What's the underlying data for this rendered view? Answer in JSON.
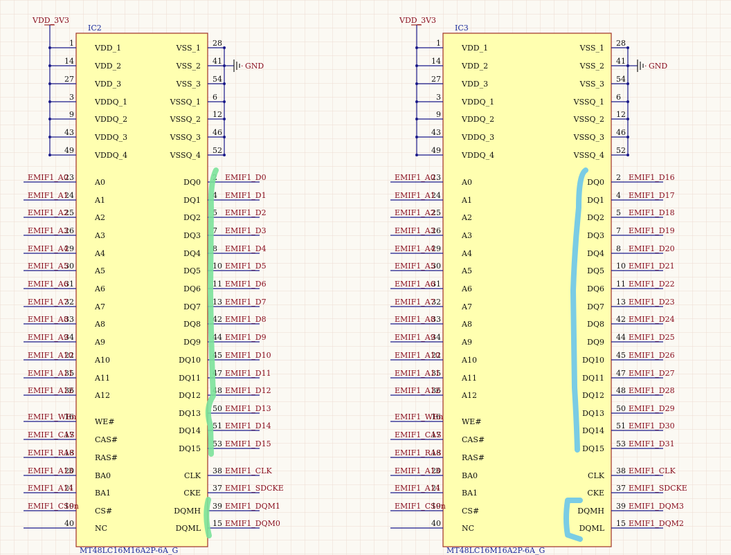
{
  "colors": {
    "body_fill": "#ffffb0",
    "body_stroke": "#a03028",
    "wire": "#1a1a8a",
    "net_text": "#8a1020",
    "grid": "#ecdcd2",
    "mark_ic2": "#7be29a",
    "mark_ic3": "#6cc6ea"
  },
  "ics": [
    {
      "designator": "IC2",
      "part": "MT48LC16M16A2P-6A_G",
      "power_label": "VDD_3V3",
      "gnd_label": "GND",
      "mark_color": "mark_ic2",
      "left_pins": [
        {
          "num": "1",
          "name": "VDD_1",
          "net": ""
        },
        {
          "num": "14",
          "name": "VDD_2",
          "net": ""
        },
        {
          "num": "27",
          "name": "VDD_3",
          "net": ""
        },
        {
          "num": "3",
          "name": "VDDQ_1",
          "net": ""
        },
        {
          "num": "9",
          "name": "VDDQ_2",
          "net": ""
        },
        {
          "num": "43",
          "name": "VDDQ_3",
          "net": ""
        },
        {
          "num": "49",
          "name": "VDDQ_4",
          "net": ""
        },
        {
          "num": "23",
          "name": "A0",
          "net": "EMIF1_A0"
        },
        {
          "num": "24",
          "name": "A1",
          "net": "EMIF1_A1"
        },
        {
          "num": "25",
          "name": "A2",
          "net": "EMIF1_A2"
        },
        {
          "num": "26",
          "name": "A3",
          "net": "EMIF1_A3"
        },
        {
          "num": "29",
          "name": "A4",
          "net": "EMIF1_A4"
        },
        {
          "num": "30",
          "name": "A5",
          "net": "EMIF1_A5"
        },
        {
          "num": "31",
          "name": "A6",
          "net": "EMIF1_A6"
        },
        {
          "num": "32",
          "name": "A7",
          "net": "EMIF1_A7"
        },
        {
          "num": "33",
          "name": "A8",
          "net": "EMIF1_A8"
        },
        {
          "num": "34",
          "name": "A9",
          "net": "EMIF1_A9"
        },
        {
          "num": "22",
          "name": "A10",
          "net": "EMIF1_A10"
        },
        {
          "num": "35",
          "name": "A11",
          "net": "EMIF1_A11"
        },
        {
          "num": "36",
          "name": "A12",
          "net": "EMIF1_A12"
        },
        {
          "num": "16",
          "name": "WE#",
          "net": "EMIF1_WEn"
        },
        {
          "num": "17",
          "name": "CAS#",
          "net": "EMIF1_CAS"
        },
        {
          "num": "18",
          "name": "RAS#",
          "net": "EMIF1_RAS"
        },
        {
          "num": "20",
          "name": "BA0",
          "net": "EMIF1_A13"
        },
        {
          "num": "21",
          "name": "BA1",
          "net": "EMIF1_A14"
        },
        {
          "num": "19",
          "name": "CS#",
          "net": "EMIF1_CS0n"
        },
        {
          "num": "40",
          "name": "NC",
          "net": ""
        }
      ],
      "right_pins": [
        {
          "num": "28",
          "name": "VSS_1",
          "net": ""
        },
        {
          "num": "41",
          "name": "VSS_2",
          "net": ""
        },
        {
          "num": "54",
          "name": "VSS_3",
          "net": ""
        },
        {
          "num": "6",
          "name": "VSSQ_1",
          "net": ""
        },
        {
          "num": "12",
          "name": "VSSQ_2",
          "net": ""
        },
        {
          "num": "46",
          "name": "VSSQ_3",
          "net": ""
        },
        {
          "num": "52",
          "name": "VSSQ_4",
          "net": ""
        },
        {
          "num": "2",
          "name": "DQ0",
          "net": "EMIF1_D0"
        },
        {
          "num": "4",
          "name": "DQ1",
          "net": "EMIF1_D1"
        },
        {
          "num": "5",
          "name": "DQ2",
          "net": "EMIF1_D2"
        },
        {
          "num": "7",
          "name": "DQ3",
          "net": "EMIF1_D3"
        },
        {
          "num": "8",
          "name": "DQ4",
          "net": "EMIF1_D4"
        },
        {
          "num": "10",
          "name": "DQ5",
          "net": "EMIF1_D5"
        },
        {
          "num": "11",
          "name": "DQ6",
          "net": "EMIF1_D6"
        },
        {
          "num": "13",
          "name": "DQ7",
          "net": "EMIF1_D7"
        },
        {
          "num": "42",
          "name": "DQ8",
          "net": "EMIF1_D8"
        },
        {
          "num": "44",
          "name": "DQ9",
          "net": "EMIF1_D9"
        },
        {
          "num": "45",
          "name": "DQ10",
          "net": "EMIF1_D10"
        },
        {
          "num": "47",
          "name": "DQ11",
          "net": "EMIF1_D11"
        },
        {
          "num": "48",
          "name": "DQ12",
          "net": "EMIF1_D12"
        },
        {
          "num": "50",
          "name": "DQ13",
          "net": "EMIF1_D13"
        },
        {
          "num": "51",
          "name": "DQ14",
          "net": "EMIF1_D14"
        },
        {
          "num": "53",
          "name": "DQ15",
          "net": "EMIF1_D15"
        },
        {
          "num": "38",
          "name": "CLK",
          "net": "EMIF1_CLK"
        },
        {
          "num": "37",
          "name": "CKE",
          "net": "EMIF1_SDCKE"
        },
        {
          "num": "39",
          "name": "DQMH",
          "net": "EMIF1_DQM1"
        },
        {
          "num": "15",
          "name": "DQML",
          "net": "EMIF1_DQM0"
        }
      ]
    },
    {
      "designator": "IC3",
      "part": "MT48LC16M16A2P-6A_G",
      "power_label": "VDD_3V3",
      "gnd_label": "GND",
      "mark_color": "mark_ic3",
      "left_pins": [
        {
          "num": "1",
          "name": "VDD_1",
          "net": ""
        },
        {
          "num": "14",
          "name": "VDD_2",
          "net": ""
        },
        {
          "num": "27",
          "name": "VDD_3",
          "net": ""
        },
        {
          "num": "3",
          "name": "VDDQ_1",
          "net": ""
        },
        {
          "num": "9",
          "name": "VDDQ_2",
          "net": ""
        },
        {
          "num": "43",
          "name": "VDDQ_3",
          "net": ""
        },
        {
          "num": "49",
          "name": "VDDQ_4",
          "net": ""
        },
        {
          "num": "23",
          "name": "A0",
          "net": "EMIF1_A0"
        },
        {
          "num": "24",
          "name": "A1",
          "net": "EMIF1_A1"
        },
        {
          "num": "25",
          "name": "A2",
          "net": "EMIF1_A2"
        },
        {
          "num": "26",
          "name": "A3",
          "net": "EMIF1_A3"
        },
        {
          "num": "29",
          "name": "A4",
          "net": "EMIF1_A4"
        },
        {
          "num": "30",
          "name": "A5",
          "net": "EMIF1_A5"
        },
        {
          "num": "31",
          "name": "A6",
          "net": "EMIF1_A6"
        },
        {
          "num": "32",
          "name": "A7",
          "net": "EMIF1_A7"
        },
        {
          "num": "33",
          "name": "A8",
          "net": "EMIF1_A8"
        },
        {
          "num": "34",
          "name": "A9",
          "net": "EMIF1_A9"
        },
        {
          "num": "22",
          "name": "A10",
          "net": "EMIF1_A10"
        },
        {
          "num": "35",
          "name": "A11",
          "net": "EMIF1_A11"
        },
        {
          "num": "36",
          "name": "A12",
          "net": "EMIF1_A12"
        },
        {
          "num": "16",
          "name": "WE#",
          "net": "EMIF1_WEn"
        },
        {
          "num": "17",
          "name": "CAS#",
          "net": "EMIF1_CAS"
        },
        {
          "num": "18",
          "name": "RAS#",
          "net": "EMIF1_RAS"
        },
        {
          "num": "20",
          "name": "BA0",
          "net": "EMIF1_A13"
        },
        {
          "num": "21",
          "name": "BA1",
          "net": "EMIF1_A14"
        },
        {
          "num": "19",
          "name": "CS#",
          "net": "EMIF1_CS0n"
        },
        {
          "num": "40",
          "name": "NC",
          "net": ""
        }
      ],
      "right_pins": [
        {
          "num": "28",
          "name": "VSS_1",
          "net": ""
        },
        {
          "num": "41",
          "name": "VSS_2",
          "net": ""
        },
        {
          "num": "54",
          "name": "VSS_3",
          "net": ""
        },
        {
          "num": "6",
          "name": "VSSQ_1",
          "net": ""
        },
        {
          "num": "12",
          "name": "VSSQ_2",
          "net": ""
        },
        {
          "num": "46",
          "name": "VSSQ_3",
          "net": ""
        },
        {
          "num": "52",
          "name": "VSSQ_4",
          "net": ""
        },
        {
          "num": "2",
          "name": "DQ0",
          "net": "EMIF1_D16"
        },
        {
          "num": "4",
          "name": "DQ1",
          "net": "EMIF1_D17"
        },
        {
          "num": "5",
          "name": "DQ2",
          "net": "EMIF1_D18"
        },
        {
          "num": "7",
          "name": "DQ3",
          "net": "EMIF1_D19"
        },
        {
          "num": "8",
          "name": "DQ4",
          "net": "EMIF1_D20"
        },
        {
          "num": "10",
          "name": "DQ5",
          "net": "EMIF1_D21"
        },
        {
          "num": "11",
          "name": "DQ6",
          "net": "EMIF1_D22"
        },
        {
          "num": "13",
          "name": "DQ7",
          "net": "EMIF1_D23"
        },
        {
          "num": "42",
          "name": "DQ8",
          "net": "EMIF1_D24"
        },
        {
          "num": "44",
          "name": "DQ9",
          "net": "EMIF1_D25"
        },
        {
          "num": "45",
          "name": "DQ10",
          "net": "EMIF1_D26"
        },
        {
          "num": "47",
          "name": "DQ11",
          "net": "EMIF1_D27"
        },
        {
          "num": "48",
          "name": "DQ12",
          "net": "EMIF1_D28"
        },
        {
          "num": "50",
          "name": "DQ13",
          "net": "EMIF1_D29"
        },
        {
          "num": "51",
          "name": "DQ14",
          "net": "EMIF1_D30"
        },
        {
          "num": "53",
          "name": "DQ15",
          "net": "EMIF1_D31"
        },
        {
          "num": "38",
          "name": "CLK",
          "net": "EMIF1_CLK"
        },
        {
          "num": "37",
          "name": "CKE",
          "net": "EMIF1_SDCKE"
        },
        {
          "num": "39",
          "name": "DQMH",
          "net": "EMIF1_DQM3"
        },
        {
          "num": "15",
          "name": "DQML",
          "net": "EMIF1_DQM2"
        }
      ]
    }
  ]
}
